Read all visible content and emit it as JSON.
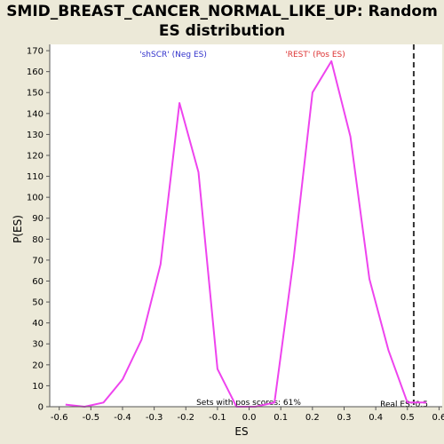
{
  "chart_data": {
    "type": "line",
    "title": "SMID_BREAST_CANCER_NORMAL_LIKE_UP: Random ES distribution",
    "xlabel": "ES",
    "ylabel": "P(ES)",
    "xlim": [
      -0.63,
      0.61
    ],
    "ylim": [
      0,
      173
    ],
    "x_ticks": [
      -0.6,
      -0.5,
      -0.4,
      -0.3,
      -0.2,
      -0.1,
      0.0,
      0.1,
      0.2,
      0.3,
      0.4,
      0.5,
      0.6
    ],
    "x_tick_labels": [
      "-0.6",
      "-0.5",
      "-0.4",
      "-0.3",
      "-0.2",
      "-0.1",
      "0.0",
      "0.1",
      "0.2",
      "0.3",
      "0.4",
      "0.5",
      "0.6"
    ],
    "y_ticks": [
      0,
      10,
      20,
      30,
      40,
      50,
      60,
      70,
      80,
      90,
      100,
      110,
      120,
      130,
      140,
      150,
      160,
      170
    ],
    "y_tick_labels": [
      "0",
      "10",
      "20",
      "30",
      "40",
      "50",
      "60",
      "70",
      "80",
      "90",
      "100",
      "110",
      "120",
      "130",
      "140",
      "150",
      "160",
      "170"
    ],
    "grid": false,
    "series": [
      {
        "color": "#ee44ee",
        "x": [
          -0.58,
          -0.52,
          -0.46,
          -0.4,
          -0.34,
          -0.28,
          -0.22,
          -0.16,
          -0.1,
          -0.04,
          0.02,
          0.08,
          0.14,
          0.2,
          0.26,
          0.32,
          0.38,
          0.44,
          0.5,
          0.56
        ],
        "y": [
          1,
          0,
          2,
          13,
          32,
          68,
          145,
          112,
          18,
          0,
          0,
          2,
          70,
          150,
          165,
          129,
          61,
          27,
          2,
          2
        ]
      }
    ],
    "real_es": 0.52,
    "annotations": {
      "neg_label": "'shSCR' (Neg ES)",
      "neg_color": "#3333cc",
      "pos_label": "'REST' (Pos ES)",
      "pos_color": "#dd3333",
      "pos_scores": "Sets with pos scores: 61%",
      "real_es_label": "Real ES: 0.5"
    }
  }
}
